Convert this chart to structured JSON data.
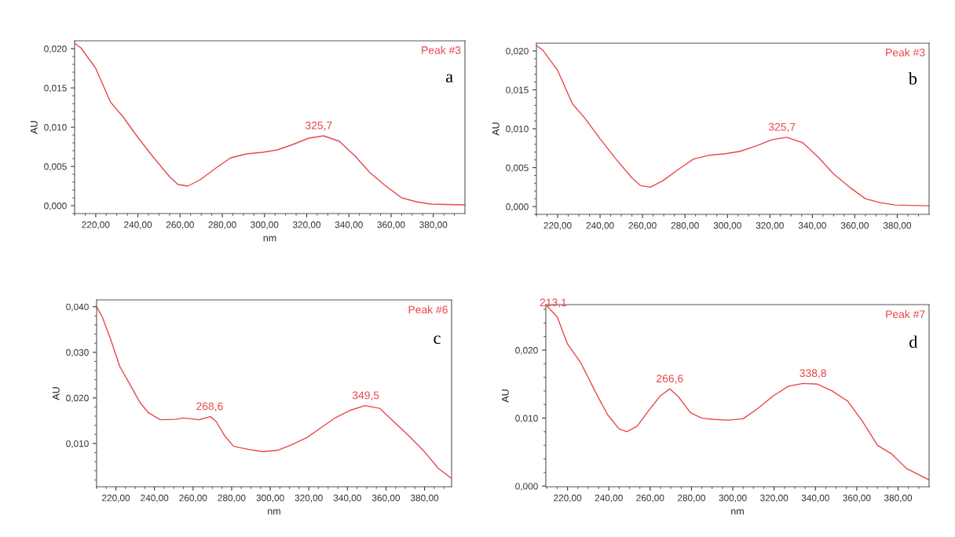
{
  "chart_data": [
    {
      "type": "line",
      "xlabel": "nm",
      "ylabel": "AU",
      "xlim": [
        210,
        395
      ],
      "ylim": [
        -0.001,
        0.021
      ],
      "xticks": [
        {
          "value": 220,
          "label": "220,00"
        },
        {
          "value": 240,
          "label": "240,00"
        },
        {
          "value": 260,
          "label": "260,00"
        },
        {
          "value": 280,
          "label": "280,00"
        },
        {
          "value": 300,
          "label": "300,00"
        },
        {
          "value": 320,
          "label": "320,00"
        },
        {
          "value": 340,
          "label": "340,00"
        },
        {
          "value": 360,
          "label": "360,00"
        },
        {
          "value": 380,
          "label": "380,00"
        }
      ],
      "yticks": [
        {
          "value": 0.0,
          "label": "0,000"
        },
        {
          "value": 0.005,
          "label": "0,005"
        },
        {
          "value": 0.01,
          "label": "0,010"
        },
        {
          "value": 0.015,
          "label": "0,015"
        },
        {
          "value": 0.02,
          "label": "0,020"
        }
      ],
      "grid": false,
      "marker": "none",
      "line_style": "solid",
      "series": [
        {
          "color": "#e8474a",
          "x": [
            210,
            213,
            220,
            227,
            233,
            240,
            247.5,
            255,
            259,
            263.7,
            269.5,
            277,
            284,
            291.5,
            299,
            306,
            313.5,
            321,
            328,
            335.5,
            343,
            350,
            357.5,
            365,
            372,
            379,
            395
          ],
          "values": [
            0.0207,
            0.0201,
            0.0175,
            0.0132,
            0.0113,
            0.0087,
            0.0061,
            0.0037,
            0.0027,
            0.0025,
            0.0033,
            0.0048,
            0.0061,
            0.0066,
            0.0068,
            0.0071,
            0.0078,
            0.0086,
            0.0089,
            0.0082,
            0.0063,
            0.0042,
            0.0025,
            0.001,
            0.0005,
            0.0002,
            0.0001
          ]
        }
      ],
      "annotations": [
        "Peak #3",
        "a",
        {
          "text": "325,7",
          "x": 325.7,
          "y": 0.0089
        }
      ]
    },
    {
      "type": "line",
      "ylabel": "AU",
      "xlim": [
        210,
        395
      ],
      "ylim": [
        -0.001,
        0.021
      ],
      "xticks": [
        {
          "value": 220,
          "label": "220,00"
        },
        {
          "value": 240,
          "label": "240,00"
        },
        {
          "value": 260,
          "label": "260,00"
        },
        {
          "value": 280,
          "label": "280,00"
        },
        {
          "value": 300,
          "label": "300,00"
        },
        {
          "value": 320,
          "label": "320,00"
        },
        {
          "value": 340,
          "label": "340,00"
        },
        {
          "value": 360,
          "label": "360,00"
        },
        {
          "value": 380,
          "label": "380,00"
        }
      ],
      "yticks": [
        {
          "value": 0.0,
          "label": "0,000"
        },
        {
          "value": 0.005,
          "label": "0,005"
        },
        {
          "value": 0.01,
          "label": "0,010"
        },
        {
          "value": 0.015,
          "label": "0,015"
        },
        {
          "value": 0.02,
          "label": "0,020"
        }
      ],
      "grid": false,
      "marker": "none",
      "line_style": "solid",
      "series": [
        {
          "color": "#e8474a",
          "x": [
            210,
            213,
            220,
            227,
            233,
            240,
            247.5,
            255,
            259,
            263.7,
            269.5,
            277,
            284,
            291.5,
            299,
            306,
            313.5,
            321,
            328,
            335.5,
            343,
            350,
            357.5,
            365,
            372,
            379,
            395
          ],
          "values": [
            0.0207,
            0.0201,
            0.0175,
            0.0132,
            0.0113,
            0.0087,
            0.0061,
            0.0037,
            0.0027,
            0.0025,
            0.0033,
            0.0048,
            0.0061,
            0.0066,
            0.0068,
            0.0071,
            0.0078,
            0.0086,
            0.0089,
            0.0082,
            0.0063,
            0.0042,
            0.0025,
            0.001,
            0.0005,
            0.0002,
            0.0001
          ]
        }
      ],
      "annotations": [
        "Peak #3",
        "b",
        {
          "text": "325,7",
          "x": 325.7,
          "y": 0.0089
        }
      ]
    },
    {
      "type": "line",
      "xlabel": "nm",
      "ylabel": "AU",
      "xlim": [
        210,
        394
      ],
      "ylim": [
        0.0005,
        0.0415
      ],
      "xticks": [
        {
          "value": 220,
          "label": "220,00"
        },
        {
          "value": 240,
          "label": "240,00"
        },
        {
          "value": 260,
          "label": "260,00"
        },
        {
          "value": 280,
          "label": "280,00"
        },
        {
          "value": 300,
          "label": "300,00"
        },
        {
          "value": 320,
          "label": "320,00"
        },
        {
          "value": 340,
          "label": "340,00"
        },
        {
          "value": 360,
          "label": "360,00"
        },
        {
          "value": 380,
          "label": "380,00"
        }
      ],
      "yticks": [
        {
          "value": 0.01,
          "label": "0,010"
        },
        {
          "value": 0.02,
          "label": "0,020"
        },
        {
          "value": 0.03,
          "label": "0,030"
        },
        {
          "value": 0.04,
          "label": "0,040"
        }
      ],
      "grid": false,
      "marker": "none",
      "line_style": "solid",
      "series": [
        {
          "color": "#e8474a",
          "x": [
            210,
            212.9,
            217.4,
            222,
            228,
            232.6,
            237,
            243,
            250.8,
            255,
            263,
            269,
            272,
            276.5,
            281,
            288.6,
            296,
            303.8,
            311,
            319,
            326.5,
            334,
            341.7,
            349,
            356.8,
            364,
            372,
            379.5,
            387,
            394
          ],
          "values": [
            0.04,
            0.0378,
            0.0327,
            0.0269,
            0.0224,
            0.0189,
            0.0167,
            0.0152,
            0.0153,
            0.0156,
            0.0152,
            0.0159,
            0.0148,
            0.0116,
            0.0094,
            0.0087,
            0.0082,
            0.0085,
            0.0097,
            0.0113,
            0.0135,
            0.0157,
            0.0173,
            0.0183,
            0.0177,
            0.0148,
            0.0116,
            0.0084,
            0.0046,
            0.0023
          ]
        }
      ],
      "annotations": [
        "Peak #6",
        "c",
        {
          "text": "268,6",
          "x": 268.6,
          "y": 0.0159
        },
        {
          "text": "349,5",
          "x": 349.5,
          "y": 0.0183
        }
      ]
    },
    {
      "type": "line",
      "xlabel": "nm",
      "ylabel": "AU",
      "xlim": [
        209.5,
        395
      ],
      "ylim": [
        -0.0001,
        0.0267
      ],
      "xticks": [
        {
          "value": 220,
          "label": "220,00"
        },
        {
          "value": 240,
          "label": "240,00"
        },
        {
          "value": 260,
          "label": "260,00"
        },
        {
          "value": 280,
          "label": "280,00"
        },
        {
          "value": 300,
          "label": "300,00"
        },
        {
          "value": 320,
          "label": "320,00"
        },
        {
          "value": 340,
          "label": "340,00"
        },
        {
          "value": 360,
          "label": "360,00"
        },
        {
          "value": 380,
          "label": "380,00"
        }
      ],
      "yticks": [
        {
          "value": 0.0,
          "label": "0,000"
        },
        {
          "value": 0.01,
          "label": "0,010"
        },
        {
          "value": 0.02,
          "label": "0,020"
        }
      ],
      "grid": false,
      "marker": "none",
      "line_style": "solid",
      "series": [
        {
          "color": "#e8474a",
          "x": [
            210,
            215,
            220,
            226.5,
            233.6,
            239.4,
            245,
            248.7,
            253.7,
            259.5,
            265,
            269.5,
            273.8,
            279.5,
            285,
            291,
            298,
            305,
            312,
            319.7,
            327,
            334,
            341,
            348,
            355.6,
            362.8,
            370,
            377,
            384,
            395
          ],
          "values": [
            0.0265,
            0.0249,
            0.0209,
            0.0181,
            0.0138,
            0.0105,
            0.0084,
            0.008,
            0.0088,
            0.0112,
            0.0133,
            0.0143,
            0.0131,
            0.0108,
            0.01,
            0.0098,
            0.0097,
            0.0099,
            0.0114,
            0.0133,
            0.0147,
            0.0151,
            0.015,
            0.014,
            0.0125,
            0.0095,
            0.006,
            0.0047,
            0.0026,
            0.0009
          ]
        }
      ],
      "annotations": [
        "Peak #7",
        "d",
        {
          "text": "213,1",
          "x": 213.1,
          "y": 0.0255
        },
        {
          "text": "266,6",
          "x": 269.5,
          "y": 0.0143
        },
        {
          "text": "338,8",
          "x": 338.8,
          "y": 0.0151
        }
      ]
    }
  ]
}
